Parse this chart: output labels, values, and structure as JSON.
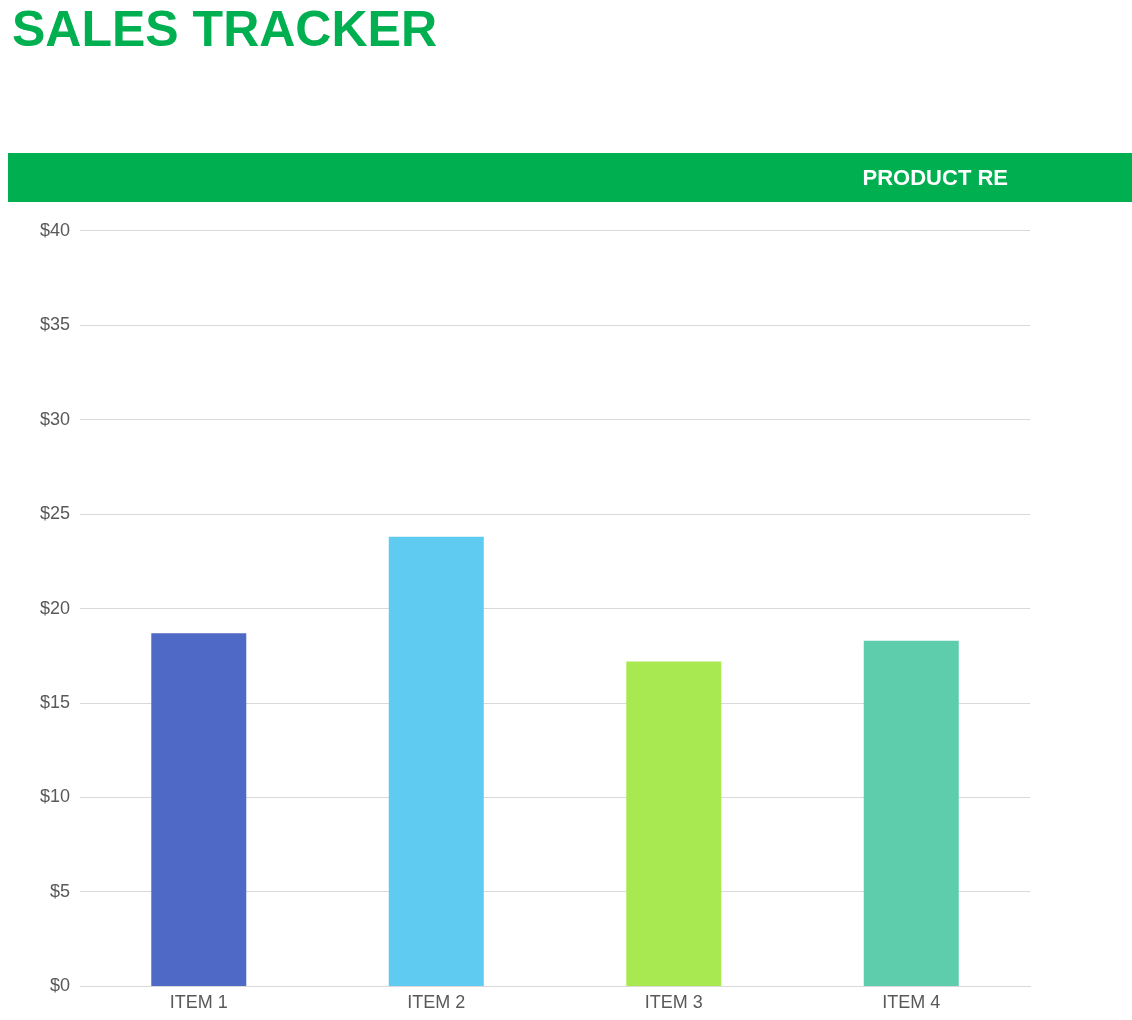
{
  "chart_data": {
    "type": "bar",
    "title": "SALES TRACKER",
    "subtitle": "PRODUCT RE",
    "categories": [
      "ITEM 1",
      "ITEM 2",
      "ITEM 3",
      "ITEM 4"
    ],
    "values": [
      18.7,
      23.8,
      17.2,
      18.3
    ],
    "colors": [
      "#4f69c6",
      "#5fcbf1",
      "#a8e952",
      "#5ecdab"
    ],
    "ylim": [
      0,
      40
    ],
    "yticks": [
      {
        "value": 0,
        "label": "$0"
      },
      {
        "value": 5,
        "label": "$5"
      },
      {
        "value": 10,
        "label": "$10"
      },
      {
        "value": 15,
        "label": "$15"
      },
      {
        "value": 20,
        "label": "$20"
      },
      {
        "value": 25,
        "label": "$25"
      },
      {
        "value": 30,
        "label": "$30"
      },
      {
        "value": 35,
        "label": "$35"
      },
      {
        "value": 40,
        "label": "$40"
      }
    ],
    "grid": "y",
    "legend": false
  }
}
